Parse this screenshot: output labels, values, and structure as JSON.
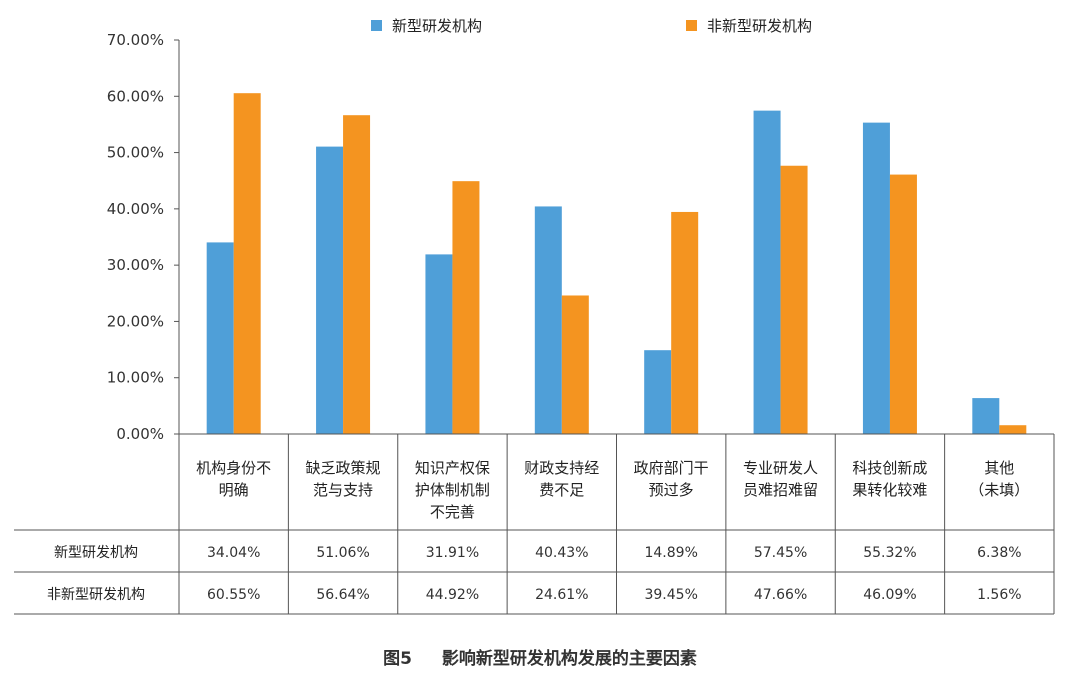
{
  "chart_data": {
    "type": "bar",
    "categories": [
      [
        "机构身份不",
        "明确"
      ],
      [
        "缺乏政策规",
        "范与支持"
      ],
      [
        "知识产权保",
        "护体制机制",
        "不完善"
      ],
      [
        "财政支持经",
        "费不足"
      ],
      [
        "政府部门干",
        "预过多"
      ],
      [
        "专业研发人",
        "员难招难留"
      ],
      [
        "科技创新成",
        "果转化较难"
      ],
      [
        "其他",
        "（未填）"
      ]
    ],
    "series": [
      {
        "name": "新型研发机构",
        "color": "#4f9fd8",
        "values": [
          34.04,
          51.06,
          31.91,
          40.43,
          14.89,
          57.45,
          55.32,
          6.38
        ],
        "labels": [
          "34.04%",
          "51.06%",
          "31.91%",
          "40.43%",
          "14.89%",
          "57.45%",
          "55.32%",
          "6.38%"
        ]
      },
      {
        "name": "非新型研发机构",
        "color": "#f49420",
        "values": [
          60.55,
          56.64,
          44.92,
          24.61,
          39.45,
          47.66,
          46.09,
          1.56
        ],
        "labels": [
          "60.55%",
          "56.64%",
          "44.92%",
          "24.61%",
          "39.45%",
          "47.66%",
          "46.09%",
          "1.56%"
        ]
      }
    ],
    "y_ticks": [
      "0.00%",
      "10.00%",
      "20.00%",
      "30.00%",
      "40.00%",
      "50.00%",
      "60.00%",
      "70.00%"
    ],
    "ylim": [
      0,
      70
    ],
    "legend_position": "top-center",
    "grid": false,
    "title": "",
    "xlabel": "",
    "ylabel": ""
  },
  "caption": {
    "figure_number": "图5",
    "text": "影响新型研发机构发展的主要因素"
  }
}
